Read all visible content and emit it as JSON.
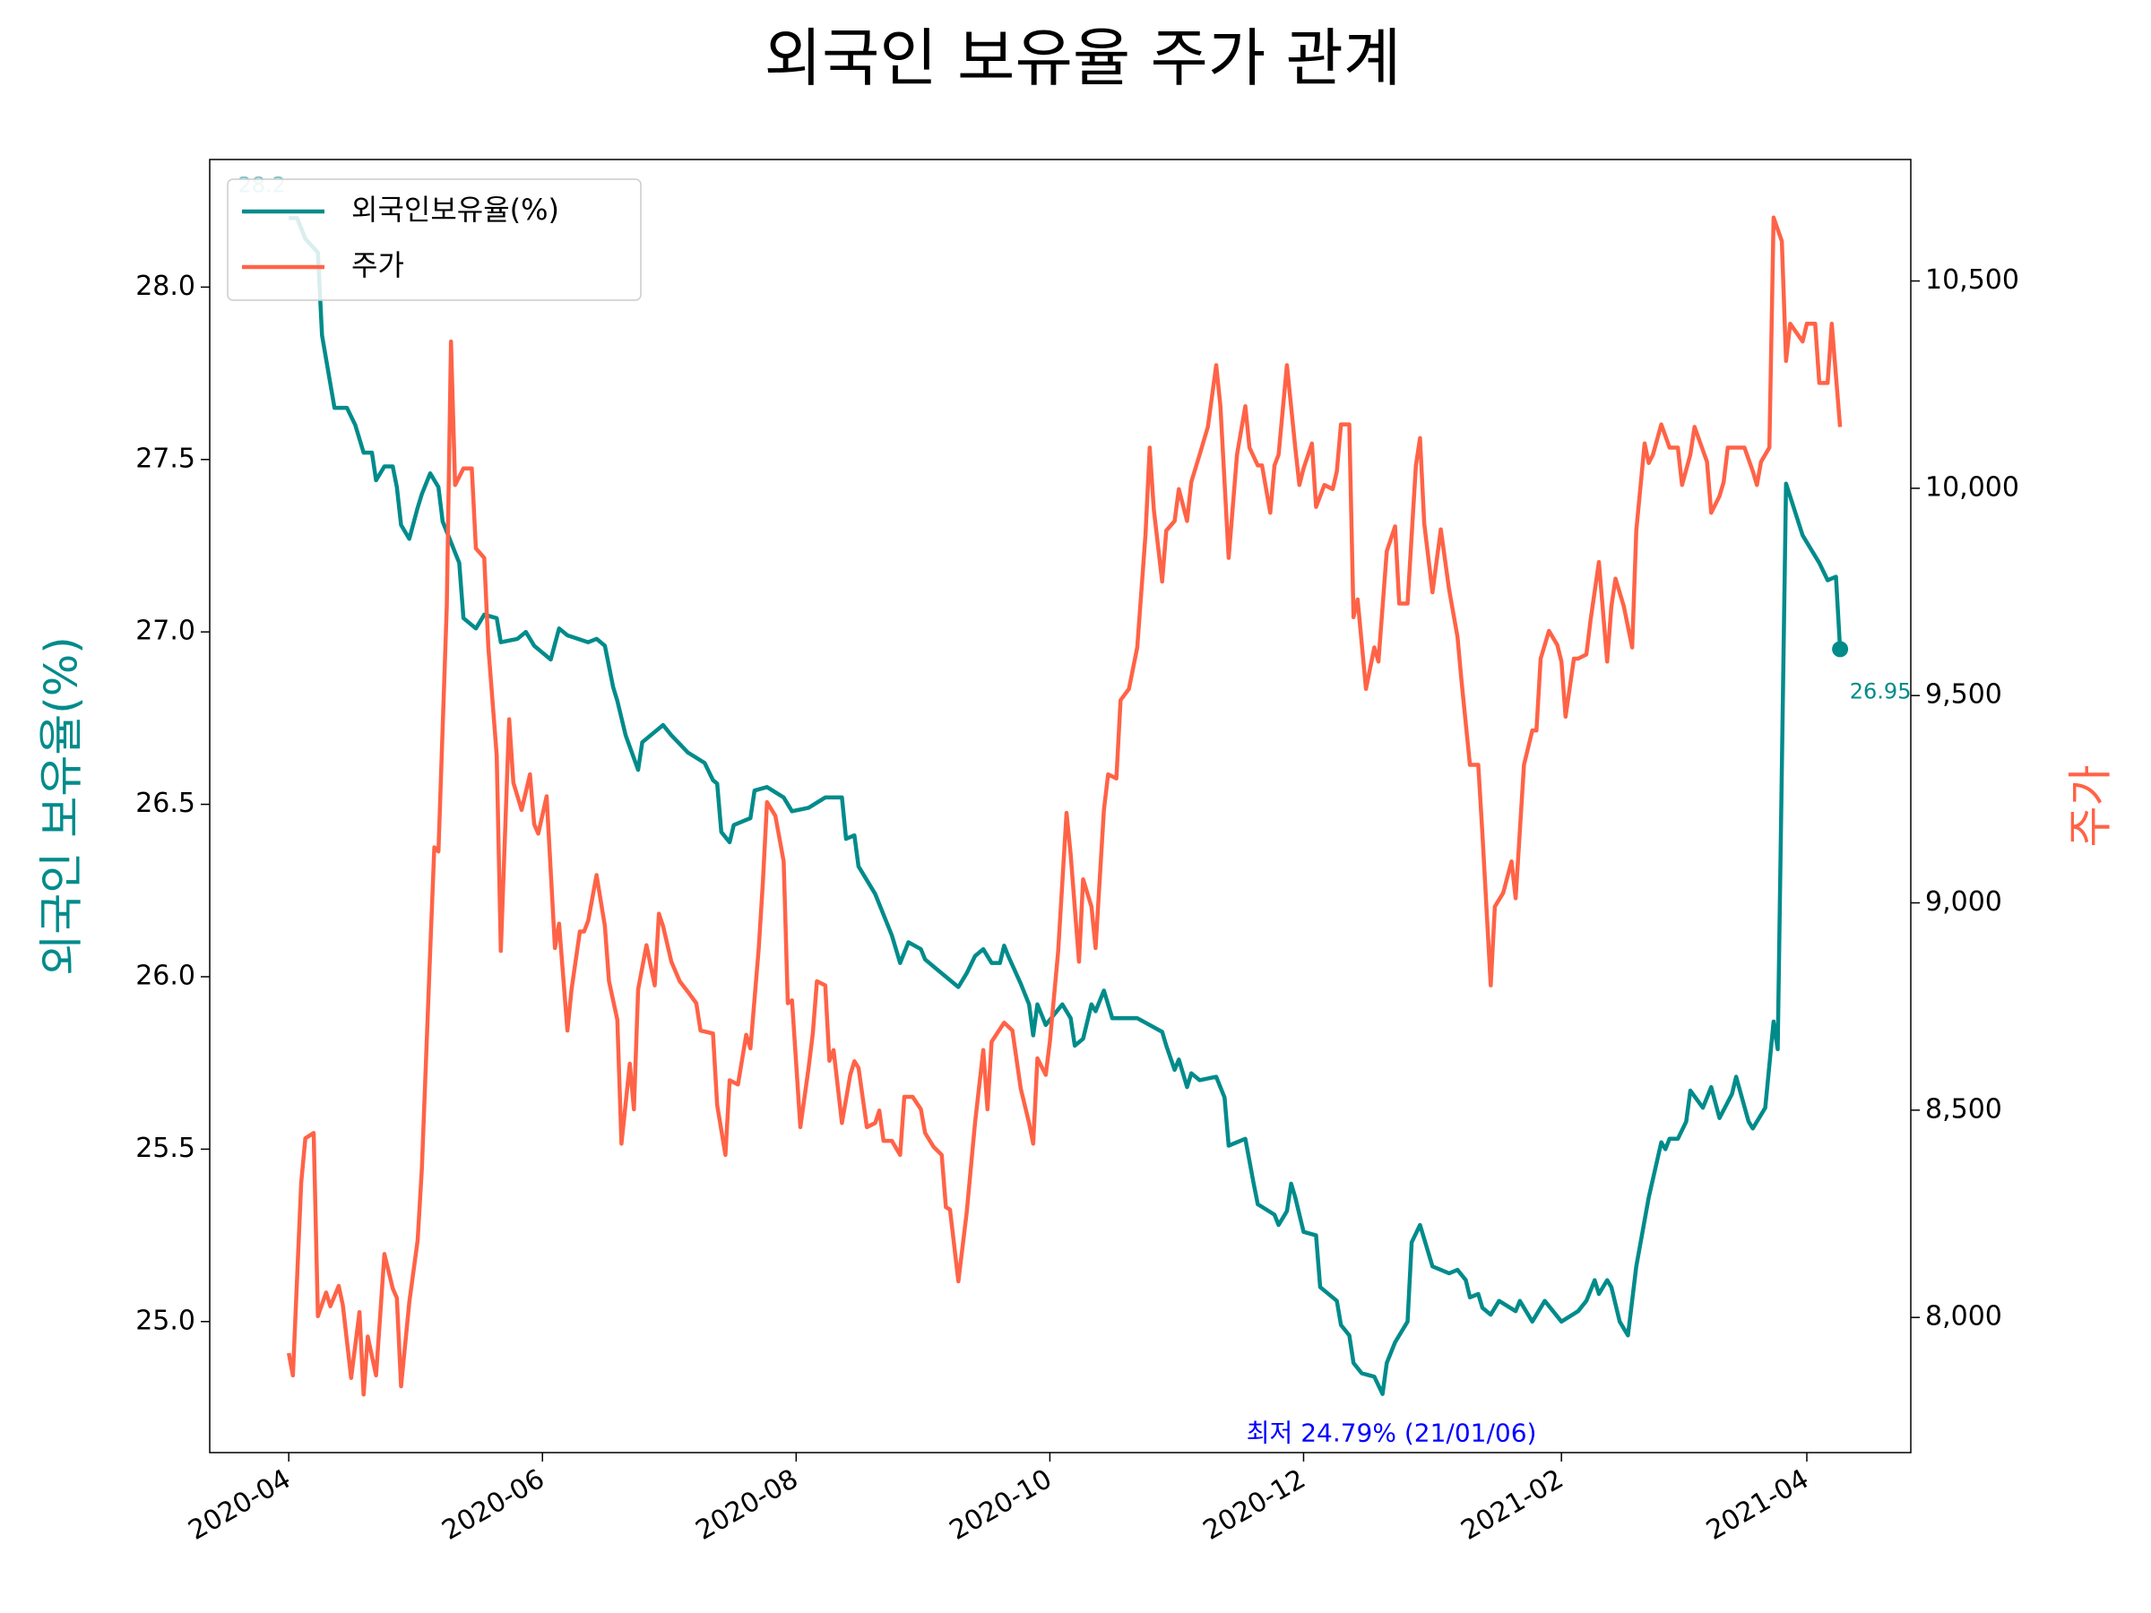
{
  "chart_data": {
    "type": "line",
    "title": "외국인 보유율 주가 관계",
    "ylabel": "외국인 보유율(%)",
    "y2label": "주가",
    "legend": "upper left",
    "grid": false,
    "xlim": [
      "2020-03-13",
      "2021-04-26"
    ],
    "xticks": [
      "2020-04",
      "2020-06",
      "2020-08",
      "2020-10",
      "2020-12",
      "2021-02",
      "2021-04"
    ],
    "ylim": [
      24.62,
      28.37
    ],
    "yticks": [
      {
        "value": 25,
        "label": "25.0"
      },
      {
        "value": 25.5,
        "label": "25.5"
      },
      {
        "value": 26,
        "label": "26.0"
      },
      {
        "value": 26.5,
        "label": "26.5"
      },
      {
        "value": 27,
        "label": "27.0"
      },
      {
        "value": 27.5,
        "label": "27.5"
      },
      {
        "value": 28,
        "label": "28.0"
      }
    ],
    "y2lim": [
      7674,
      10793
    ],
    "y2ticks": [
      {
        "value": 8000,
        "label": "8,000"
      },
      {
        "value": 8500,
        "label": "8,500"
      },
      {
        "value": 9000,
        "label": "9,000"
      },
      {
        "value": 9500,
        "label": "9,500"
      },
      {
        "value": 10000,
        "label": "10,000"
      },
      {
        "value": 10500,
        "label": "10,500"
      }
    ],
    "annotations": [
      "최저 24.79% (21/01/06)"
    ],
    "series": [
      {
        "name": "외국인보유율(%)",
        "color": "#008b8b",
        "x": [
          "2020-04-01",
          "2020-04-03",
          "2020-04-05",
          "2020-04-08",
          "2020-04-09",
          "2020-04-12",
          "2020-04-15",
          "2020-04-17",
          "2020-04-19",
          "2020-04-21",
          "2020-04-22",
          "2020-04-24",
          "2020-04-26",
          "2020-04-27",
          "2020-04-28",
          "2020-04-30",
          "2020-05-02",
          "2020-05-03",
          "2020-05-05",
          "2020-05-07",
          "2020-05-08",
          "2020-05-10",
          "2020-05-12",
          "2020-05-13",
          "2020-05-16",
          "2020-05-18",
          "2020-05-21",
          "2020-05-22",
          "2020-05-26",
          "2020-05-28",
          "2020-05-30",
          "2020-06-01",
          "2020-06-03",
          "2020-06-05",
          "2020-06-07",
          "2020-06-12",
          "2020-06-14",
          "2020-06-16",
          "2020-06-18",
          "2020-06-19",
          "2020-06-21",
          "2020-06-24",
          "2020-06-25",
          "2020-06-28",
          "2020-06-30",
          "2020-07-02",
          "2020-07-06",
          "2020-07-10",
          "2020-07-12",
          "2020-07-13",
          "2020-07-14",
          "2020-07-16",
          "2020-07-17",
          "2020-07-21",
          "2020-07-22",
          "2020-07-25",
          "2020-07-29",
          "2020-07-31",
          "2020-08-04",
          "2020-08-08",
          "2020-08-12",
          "2020-08-13",
          "2020-08-15",
          "2020-08-16",
          "2020-08-20",
          "2020-08-22",
          "2020-08-24",
          "2020-08-26",
          "2020-08-28",
          "2020-08-31",
          "2020-09-01",
          "2020-09-05",
          "2020-09-09",
          "2020-09-11",
          "2020-09-13",
          "2020-09-15",
          "2020-09-17",
          "2020-09-19",
          "2020-09-20",
          "2020-09-21",
          "2020-09-24",
          "2020-09-26",
          "2020-09-27",
          "2020-09-28",
          "2020-09-30",
          "2020-10-04",
          "2020-10-06",
          "2020-10-07",
          "2020-10-09",
          "2020-10-11",
          "2020-10-12",
          "2020-10-14",
          "2020-10-16",
          "2020-10-22",
          "2020-10-28",
          "2020-10-29",
          "2020-10-31",
          "2020-11-01",
          "2020-11-03",
          "2020-11-04",
          "2020-11-06",
          "2020-11-10",
          "2020-11-12",
          "2020-11-13",
          "2020-11-17",
          "2020-11-19",
          "2020-11-20",
          "2020-11-24",
          "2020-11-25",
          "2020-11-27",
          "2020-11-28",
          "2020-11-29",
          "2020-12-01",
          "2020-12-04",
          "2020-12-05",
          "2020-12-09",
          "2020-12-10",
          "2020-12-12",
          "2020-12-13",
          "2020-12-15",
          "2020-12-18",
          "2020-12-20",
          "2020-12-21",
          "2020-12-23",
          "2020-12-26",
          "2020-12-27",
          "2020-12-29",
          "2021-01-01",
          "2021-01-05",
          "2021-01-07",
          "2021-01-09",
          "2021-01-10",
          "2021-01-12",
          "2021-01-13",
          "2021-01-15",
          "2021-01-17",
          "2021-01-21",
          "2021-01-22",
          "2021-01-25",
          "2021-01-28",
          "2021-02-01",
          "2021-02-05",
          "2021-02-07",
          "2021-02-09",
          "2021-02-10",
          "2021-02-12",
          "2021-02-13",
          "2021-02-15",
          "2021-02-17",
          "2021-02-19",
          "2021-02-22",
          "2021-02-25",
          "2021-02-26",
          "2021-02-27",
          "2021-03-01",
          "2021-03-03",
          "2021-03-04",
          "2021-03-07",
          "2021-03-09",
          "2021-03-11",
          "2021-03-14",
          "2021-03-15",
          "2021-03-18",
          "2021-03-19",
          "2021-03-22",
          "2021-03-24",
          "2021-03-25",
          "2021-03-27",
          "2021-03-31",
          "2021-04-04",
          "2021-04-06",
          "2021-04-08",
          "2021-04-09"
        ],
        "values": [
          28.2,
          28.2,
          28.14,
          28.1,
          27.86,
          27.65,
          27.65,
          27.6,
          27.52,
          27.52,
          27.44,
          27.48,
          27.48,
          27.42,
          27.31,
          27.27,
          27.36,
          27.4,
          27.46,
          27.42,
          27.32,
          27.26,
          27.2,
          27.04,
          27.01,
          27.05,
          27.04,
          26.97,
          26.98,
          27.0,
          26.96,
          26.94,
          26.92,
          27.01,
          26.99,
          26.97,
          26.98,
          26.96,
          26.84,
          26.8,
          26.7,
          26.6,
          26.68,
          26.71,
          26.73,
          26.7,
          26.65,
          26.62,
          26.57,
          26.56,
          26.42,
          26.39,
          26.44,
          26.46,
          26.54,
          26.55,
          26.52,
          26.48,
          26.49,
          26.52,
          26.52,
          26.4,
          26.41,
          26.32,
          26.24,
          26.18,
          26.12,
          26.04,
          26.1,
          26.08,
          26.05,
          26.01,
          25.97,
          26.01,
          26.06,
          26.08,
          26.04,
          26.04,
          26.09,
          26.06,
          25.98,
          25.92,
          25.83,
          25.92,
          25.86,
          25.92,
          25.88,
          25.8,
          25.82,
          25.92,
          25.9,
          25.96,
          25.88,
          25.88,
          25.84,
          25.8,
          25.73,
          25.76,
          25.68,
          25.72,
          25.7,
          25.71,
          25.65,
          25.51,
          25.53,
          25.4,
          25.34,
          25.31,
          25.28,
          25.32,
          25.4,
          25.36,
          25.26,
          25.25,
          25.1,
          25.06,
          24.99,
          24.96,
          24.88,
          24.85,
          24.84,
          24.79,
          24.88,
          24.94,
          25.0,
          25.23,
          25.28,
          25.16,
          25.14,
          25.15,
          25.12,
          25.07,
          25.08,
          25.04,
          25.02,
          25.06,
          25.03,
          25.06,
          25.0,
          25.06,
          25.0,
          25.03,
          25.06,
          25.12,
          25.08,
          25.12,
          25.1,
          25.0,
          24.96,
          25.16,
          25.36,
          25.52,
          25.5,
          25.53,
          25.53,
          25.58,
          25.67,
          25.62,
          25.68,
          25.59,
          25.66,
          25.71,
          25.58,
          25.56,
          25.62,
          25.87,
          25.79,
          27.43,
          27.28,
          27.2,
          27.15,
          27.16,
          26.95
        ]
      },
      {
        "name": "주가",
        "color": "#ff6347",
        "axis": "y2",
        "x": [
          "2020-04-01",
          "2020-04-02",
          "2020-04-04",
          "2020-04-05",
          "2020-04-07",
          "2020-04-08",
          "2020-04-10",
          "2020-04-11",
          "2020-04-13",
          "2020-04-14",
          "2020-04-16",
          "2020-04-18",
          "2020-04-19",
          "2020-04-20",
          "2020-04-22",
          "2020-04-24",
          "2020-04-26",
          "2020-04-27",
          "2020-04-28",
          "2020-04-30",
          "2020-05-02",
          "2020-05-03",
          "2020-05-05",
          "2020-05-06",
          "2020-05-07",
          "2020-05-09",
          "2020-05-10",
          "2020-05-11",
          "2020-05-13",
          "2020-05-15",
          "2020-05-16",
          "2020-05-18",
          "2020-05-19",
          "2020-05-21",
          "2020-05-22",
          "2020-05-24",
          "2020-05-25",
          "2020-05-27",
          "2020-05-29",
          "2020-05-30",
          "2020-05-31",
          "2020-06-02",
          "2020-06-04",
          "2020-06-05",
          "2020-06-07",
          "2020-06-08",
          "2020-06-10",
          "2020-06-11",
          "2020-06-12",
          "2020-06-14",
          "2020-06-16",
          "2020-06-17",
          "2020-06-19",
          "2020-06-20",
          "2020-06-22",
          "2020-06-23",
          "2020-06-24",
          "2020-06-26",
          "2020-06-28",
          "2020-06-29",
          "2020-06-30",
          "2020-07-02",
          "2020-07-04",
          "2020-07-06",
          "2020-07-08",
          "2020-07-09",
          "2020-07-12",
          "2020-07-13",
          "2020-07-15",
          "2020-07-16",
          "2020-07-18",
          "2020-07-20",
          "2020-07-21",
          "2020-07-23",
          "2020-07-24",
          "2020-07-25",
          "2020-07-27",
          "2020-07-29",
          "2020-07-30",
          "2020-07-31",
          "2020-08-02",
          "2020-08-04",
          "2020-08-05",
          "2020-08-06",
          "2020-08-08",
          "2020-08-09",
          "2020-08-10",
          "2020-08-12",
          "2020-08-14",
          "2020-08-15",
          "2020-08-16",
          "2020-08-18",
          "2020-08-20",
          "2020-08-21",
          "2020-08-22",
          "2020-08-24",
          "2020-08-26",
          "2020-08-27",
          "2020-08-29",
          "2020-08-31",
          "2020-09-01",
          "2020-09-03",
          "2020-09-05",
          "2020-09-06",
          "2020-09-07",
          "2020-09-09",
          "2020-09-11",
          "2020-09-13",
          "2020-09-15",
          "2020-09-16",
          "2020-09-17",
          "2020-09-20",
          "2020-09-22",
          "2020-09-24",
          "2020-09-26",
          "2020-09-27",
          "2020-09-28",
          "2020-09-30",
          "2020-10-01",
          "2020-10-03",
          "2020-10-05",
          "2020-10-06",
          "2020-10-08",
          "2020-10-09",
          "2020-10-11",
          "2020-10-12",
          "2020-10-14",
          "2020-10-15",
          "2020-10-17",
          "2020-10-18",
          "2020-10-20",
          "2020-10-22",
          "2020-10-24",
          "2020-10-25",
          "2020-10-26",
          "2020-10-28",
          "2020-10-29",
          "2020-10-31",
          "2020-11-01",
          "2020-11-03",
          "2020-11-04",
          "2020-11-06",
          "2020-11-08",
          "2020-11-10",
          "2020-11-11",
          "2020-11-13",
          "2020-11-15",
          "2020-11-17",
          "2020-11-18",
          "2020-11-20",
          "2020-11-21",
          "2020-11-23",
          "2020-11-24",
          "2020-11-25",
          "2020-11-27",
          "2020-11-29",
          "2020-11-30",
          "2020-12-01",
          "2020-12-03",
          "2020-12-04",
          "2020-12-06",
          "2020-12-08",
          "2020-12-09",
          "2020-12-10",
          "2020-12-12",
          "2020-12-13",
          "2020-12-14",
          "2020-12-16",
          "2020-12-18",
          "2020-12-19",
          "2020-12-21",
          "2020-12-23",
          "2020-12-24",
          "2020-12-26",
          "2020-12-28",
          "2020-12-29",
          "2020-12-30",
          "2021-01-01",
          "2021-01-03",
          "2021-01-05",
          "2021-01-07",
          "2021-01-08",
          "2021-01-10",
          "2021-01-12",
          "2021-01-13",
          "2021-01-15",
          "2021-01-16",
          "2021-01-18",
          "2021-01-20",
          "2021-01-21",
          "2021-01-23",
          "2021-01-25",
          "2021-01-26",
          "2021-01-27",
          "2021-01-29",
          "2021-01-31",
          "2021-02-01",
          "2021-02-02",
          "2021-02-04",
          "2021-02-05",
          "2021-02-07",
          "2021-02-08",
          "2021-02-10",
          "2021-02-12",
          "2021-02-13",
          "2021-02-14",
          "2021-02-16",
          "2021-02-18",
          "2021-02-19",
          "2021-02-21",
          "2021-02-22",
          "2021-02-23",
          "2021-02-25",
          "2021-02-27",
          "2021-03-01",
          "2021-03-02",
          "2021-03-04",
          "2021-03-05",
          "2021-03-08",
          "2021-03-09",
          "2021-03-11",
          "2021-03-12",
          "2021-03-13",
          "2021-03-17",
          "2021-03-19",
          "2021-03-20",
          "2021-03-21",
          "2021-03-23",
          "2021-03-24",
          "2021-03-26",
          "2021-03-27",
          "2021-03-28",
          "2021-03-31",
          "2021-04-01",
          "2021-04-03",
          "2021-04-04",
          "2021-04-06",
          "2021-04-07",
          "2021-04-09"
        ],
        "values": [
          7914,
          7860,
          8326,
          8432,
          8445,
          8003,
          8060,
          8027,
          8076,
          8030,
          7854,
          8013,
          7814,
          7954,
          7860,
          8153,
          8070,
          8047,
          7834,
          8037,
          8186,
          8359,
          8884,
          9134,
          9124,
          9715,
          10354,
          10008,
          10048,
          10048,
          9855,
          9832,
          9616,
          9356,
          8884,
          9443,
          9290,
          9224,
          9310,
          9190,
          9167,
          9257,
          8891,
          8950,
          8692,
          8791,
          8931,
          8931,
          8957,
          9067,
          8944,
          8811,
          8718,
          8419,
          8612,
          8502,
          8791,
          8898,
          8801,
          8974,
          8944,
          8858,
          8811,
          8785,
          8758,
          8692,
          8685,
          8512,
          8392,
          8572,
          8562,
          8682,
          8649,
          8891,
          9050,
          9243,
          9210,
          9100,
          8758,
          8765,
          8459,
          8602,
          8685,
          8811,
          8801,
          8619,
          8645,
          8469,
          8585,
          8618,
          8602,
          8459,
          8469,
          8499,
          8426,
          8426,
          8392,
          8532,
          8532,
          8502,
          8445,
          8412,
          8392,
          8266,
          8260,
          8087,
          8253,
          8469,
          8645,
          8502,
          8665,
          8711,
          8692,
          8552,
          8469,
          8419,
          8625,
          8585,
          8665,
          8884,
          9217,
          9117,
          8858,
          9057,
          8991,
          8891,
          9224,
          9310,
          9300,
          9489,
          9516,
          9616,
          9888,
          10098,
          9948,
          9775,
          9898,
          9921,
          9998,
          9921,
          10015,
          10081,
          10148,
          10297,
          10198,
          9832,
          10081,
          10198,
          10098,
          10055,
          10055,
          9941,
          10055,
          10081,
          10297,
          10098,
          10008,
          10048,
          10108,
          9955,
          10008,
          9998,
          10041,
          10154,
          10154,
          9689,
          9732,
          9516,
          9616,
          9582,
          9848,
          9908,
          9722,
          9722,
          10055,
          10121,
          9915,
          9749,
          9901,
          9755,
          9642,
          9533,
          9333,
          9333,
          9167,
          8801,
          8991,
          9024,
          9100,
          9011,
          9333,
          9416,
          9416,
          9589,
          9656,
          9622,
          9582,
          9449,
          9589,
          9589,
          9599,
          9682,
          9822,
          9582,
          9715,
          9782,
          9715,
          9616,
          9898,
          10108,
          10061,
          10081,
          10154,
          10098,
          10098,
          10008,
          10081,
          10148,
          10064,
          9941,
          9981,
          10015,
          10098,
          10098,
          10041,
          10008,
          10064,
          10098,
          10653,
          10596,
          10307,
          10397,
          10354,
          10397,
          10397,
          10254,
          10254,
          10397,
          10148
        ]
      }
    ]
  }
}
